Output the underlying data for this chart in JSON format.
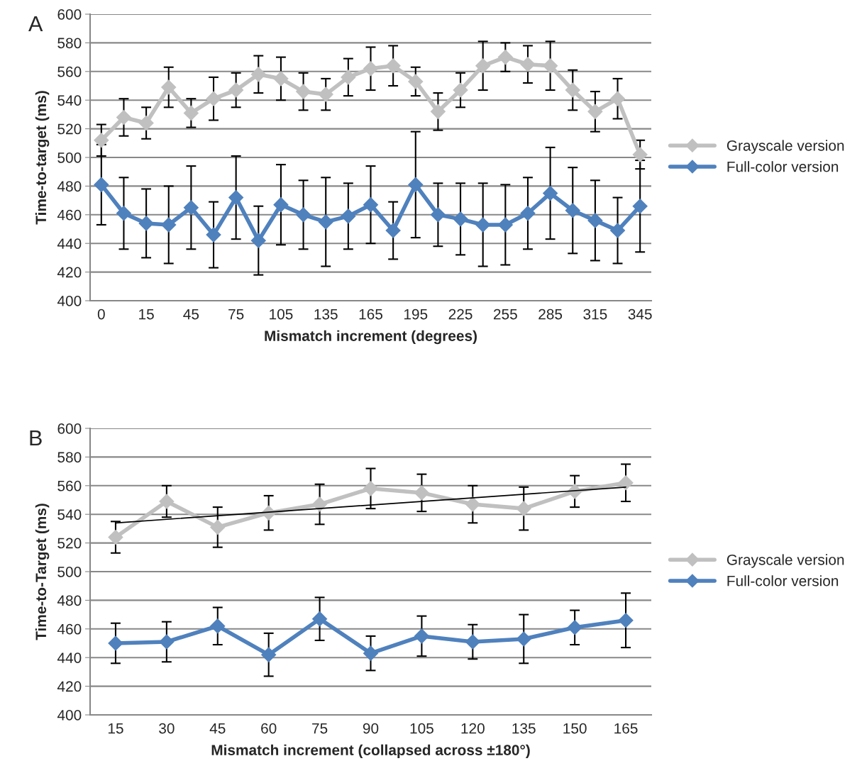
{
  "chart_data": [
    {
      "type": "line",
      "title": "A",
      "xlabel": "Mismatch increment (degrees)",
      "ylabel": "Time-to-target (ms)",
      "categories": [
        "0",
        null,
        "15",
        null,
        "45",
        null,
        "75",
        null,
        "105",
        null,
        "135",
        null,
        "165",
        null,
        "195",
        null,
        "225",
        null,
        "255",
        null,
        "285",
        null,
        "315",
        null,
        "345"
      ],
      "series": [
        {
          "name": "Grayscale version",
          "color": "#c0c0c0",
          "values": [
            512,
            528,
            524,
            549,
            531,
            541,
            547,
            558,
            555,
            546,
            544,
            556,
            562,
            564,
            553,
            532,
            547,
            564,
            570,
            565,
            564,
            547,
            532,
            541,
            502
          ],
          "errors": [
            11,
            13,
            11,
            14,
            10,
            15,
            12,
            13,
            15,
            13,
            11,
            13,
            15,
            14,
            10,
            13,
            12,
            17,
            10,
            13,
            17,
            14,
            14,
            14,
            10
          ]
        },
        {
          "name": "Full-color version",
          "color": "#4f81bd",
          "values": [
            481,
            461,
            454,
            453,
            465,
            446,
            472,
            442,
            467,
            460,
            455,
            459,
            467,
            449,
            481,
            460,
            457,
            453,
            453,
            461,
            475,
            463,
            456,
            449,
            466
          ],
          "errors": [
            28,
            25,
            24,
            27,
            29,
            23,
            29,
            24,
            28,
            24,
            31,
            23,
            27,
            20,
            37,
            22,
            25,
            29,
            28,
            25,
            32,
            30,
            28,
            23,
            32
          ]
        }
      ],
      "ylim": [
        400,
        600
      ],
      "yticks": [
        400,
        420,
        440,
        460,
        480,
        500,
        520,
        540,
        560,
        580,
        600
      ],
      "grid": "y",
      "legend": "right",
      "marker": "diamond",
      "line_style": "solid"
    },
    {
      "type": "line",
      "title": "B",
      "xlabel": "Mismatch increment (collapsed across ±180°)",
      "ylabel": "Time-to-Target (ms)",
      "categories": [
        "15",
        "30",
        "45",
        "60",
        "75",
        "90",
        "105",
        "120",
        "135",
        "150",
        "165"
      ],
      "series": [
        {
          "name": "Grayscale version",
          "color": "#c0c0c0",
          "values": [
            524,
            549,
            531,
            541,
            547,
            558,
            555,
            547,
            544,
            556,
            562
          ],
          "errors": [
            11,
            11,
            14,
            12,
            14,
            14,
            13,
            13,
            15,
            11,
            13
          ]
        },
        {
          "name": "Full-color version",
          "color": "#4f81bd",
          "values": [
            450,
            451,
            462,
            442,
            467,
            443,
            455,
            451,
            453,
            461,
            466
          ],
          "errors": [
            14,
            14,
            13,
            15,
            15,
            12,
            14,
            12,
            17,
            12,
            19
          ]
        },
        {
          "type": "line",
          "color": "#000000",
          "x": [
            "15",
            "165"
          ],
          "values": [
            534,
            559
          ],
          "marker": "none"
        }
      ],
      "ylim": [
        400,
        600
      ],
      "yticks": [
        400,
        420,
        440,
        460,
        480,
        500,
        520,
        540,
        560,
        580,
        600
      ],
      "grid": "y",
      "legend": "right",
      "marker": "diamond",
      "line_style": "solid"
    }
  ]
}
